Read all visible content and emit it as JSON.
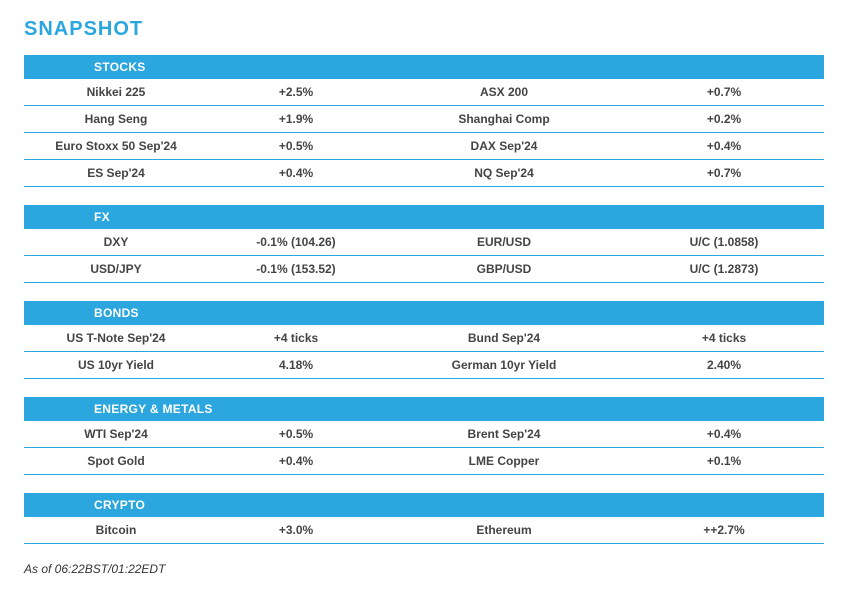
{
  "title": "SNAPSHOT",
  "footer": "As of 06:22BST/01:22EDT",
  "colors": {
    "accent": "#2ba6de",
    "text": "#333333",
    "background": "#ffffff"
  },
  "sections": [
    {
      "header": "STOCKS",
      "rows": [
        {
          "left_name": "Nikkei 225",
          "left_val": "+2.5%",
          "right_name": "ASX 200",
          "right_val": "+0.7%"
        },
        {
          "left_name": "Hang Seng",
          "left_val": "+1.9%",
          "right_name": "Shanghai Comp",
          "right_val": "+0.2%"
        },
        {
          "left_name": "Euro Stoxx 50 Sep'24",
          "left_val": "+0.5%",
          "right_name": "DAX Sep'24",
          "right_val": "+0.4%"
        },
        {
          "left_name": "ES Sep'24",
          "left_val": "+0.4%",
          "right_name": "NQ Sep'24",
          "right_val": "+0.7%"
        }
      ]
    },
    {
      "header": "FX",
      "rows": [
        {
          "left_name": "DXY",
          "left_val": "-0.1% (104.26)",
          "right_name": "EUR/USD",
          "right_val": "U/C (1.0858)"
        },
        {
          "left_name": "USD/JPY",
          "left_val": "-0.1% (153.52)",
          "right_name": "GBP/USD",
          "right_val": "U/C (1.2873)"
        }
      ]
    },
    {
      "header": "BONDS",
      "rows": [
        {
          "left_name": "US T-Note Sep'24",
          "left_val": "+4 ticks",
          "right_name": "Bund Sep'24",
          "right_val": "+4 ticks"
        },
        {
          "left_name": "US 10yr Yield",
          "left_val": "4.18%",
          "right_name": "German 10yr Yield",
          "right_val": "2.40%"
        }
      ]
    },
    {
      "header": "ENERGY & METALS",
      "rows": [
        {
          "left_name": "WTI Sep'24",
          "left_val": "+0.5%",
          "right_name": "Brent Sep'24",
          "right_val": "+0.4%"
        },
        {
          "left_name": "Spot Gold",
          "left_val": "+0.4%",
          "right_name": "LME Copper",
          "right_val": "+0.1%"
        }
      ]
    },
    {
      "header": "CRYPTO",
      "rows": [
        {
          "left_name": "Bitcoin",
          "left_val": "+3.0%",
          "right_name": "Ethereum",
          "right_val": "++2.7%"
        }
      ]
    }
  ]
}
